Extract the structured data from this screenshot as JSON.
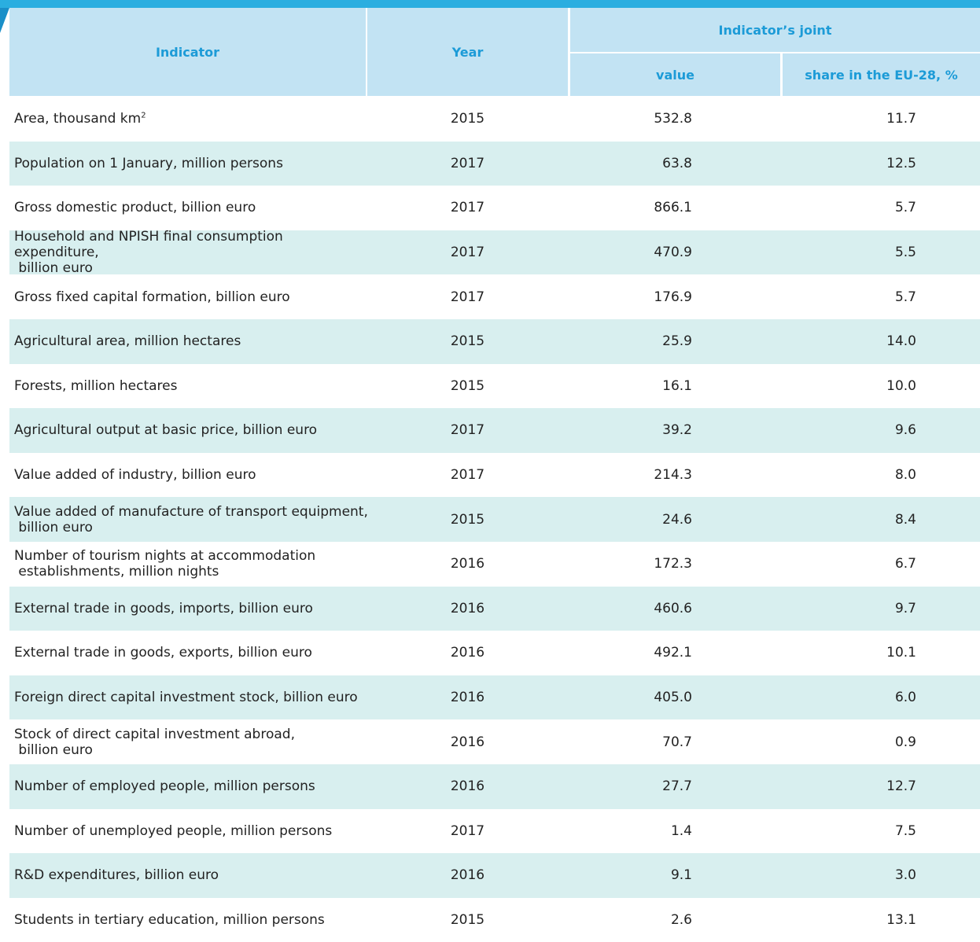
{
  "table": {
    "header": {
      "indicator": "Indicator",
      "year": "Year",
      "joint": "Indicator’s joint",
      "value": "value",
      "share": "share in the EU-28, %"
    },
    "rows": [
      [
        "Area, thousand km",
        "2015",
        "532.8",
        "11.7"
      ],
      [
        "Population on 1 January, million persons",
        "2017",
        "63.8",
        "12.5"
      ],
      [
        "Gross domestic product, billion euro",
        "2017",
        "866.1",
        "5.7"
      ],
      [
        "Household and NPISH final consumption expenditure,\n billion euro",
        "2017",
        "470.9",
        "5.5"
      ],
      [
        "Gross fixed capital formation, billion euro",
        "2017",
        "176.9",
        "5.7"
      ],
      [
        "Agricultural area, million hectares",
        "2015",
        "25.9",
        "14.0"
      ],
      [
        "Forests, million hectares",
        "2015",
        "16.1",
        "10.0"
      ],
      [
        "Agricultural output at basic price, billion euro",
        "2017",
        "39.2",
        "9.6"
      ],
      [
        "Value added of industry, billion euro",
        "2017",
        "214.3",
        "8.0"
      ],
      [
        "Value added of manufacture of transport equipment,\n billion euro",
        "2015",
        "24.6",
        "8.4"
      ],
      [
        "Number of tourism nights at accommodation\n establishments, million nights",
        "2016",
        "172.3",
        "6.7"
      ],
      [
        "External trade in goods, imports, billion euro",
        "2016",
        "460.6",
        "9.7"
      ],
      [
        "External trade in goods, exports, billion euro",
        "2016",
        "492.1",
        "10.1"
      ],
      [
        "Foreign direct capital investment stock, billion euro",
        "2016",
        "405.0",
        "6.0"
      ],
      [
        "Stock of direct capital investment abroad,\n billion euro",
        "2016",
        "70.7",
        "0.9"
      ],
      [
        "Number of employed people, million persons",
        "2016",
        "27.7",
        "12.7"
      ],
      [
        "Number of unemployed people, million persons",
        "2017",
        "1.4",
        "7.5"
      ],
      [
        "R&D expenditures, billion euro",
        "2016",
        "9.1",
        "3.0"
      ],
      [
        "Students in tertiary education, million persons",
        "2015",
        "2.6",
        "13.1"
      ]
    ],
    "area_superscript": "2"
  }
}
